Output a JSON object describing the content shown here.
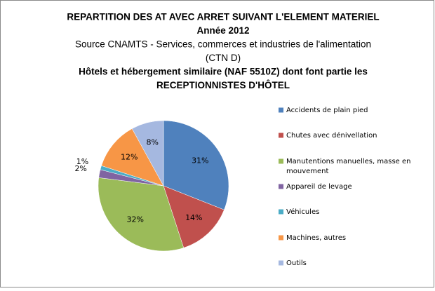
{
  "chart_data": {
    "type": "pie",
    "title_lines": [
      "REPARTITION DES AT AVEC ARRET SUIVANT L'ELEMENT MATERIEL",
      "Année 2012",
      "Source CNAMTS -  Services, commerces et industries de l'alimentation",
      "(CTN D)",
      "Hôtels et hébergement similaire (NAF 5510Z) dont font partie les",
      "RECEPTIONNISTES D'HÔTEL"
    ],
    "categories": [
      "Accidents de plain pied",
      "Chutes avec dénivellation",
      "Manutentions manuelles, masse en mouvement",
      "Appareil de levage",
      "Véhicules",
      "Machines, autres",
      "Outils"
    ],
    "values": [
      31,
      14,
      32,
      2,
      1,
      12,
      8
    ],
    "value_labels": [
      "31%",
      "14%",
      "32%",
      "2%",
      "1%",
      "12%",
      "8%"
    ],
    "colors": [
      "#4f81bd",
      "#c0504d",
      "#9bbb59",
      "#8064a2",
      "#4bacc6",
      "#f79646",
      "#a5b8e0"
    ],
    "legend": "right"
  }
}
